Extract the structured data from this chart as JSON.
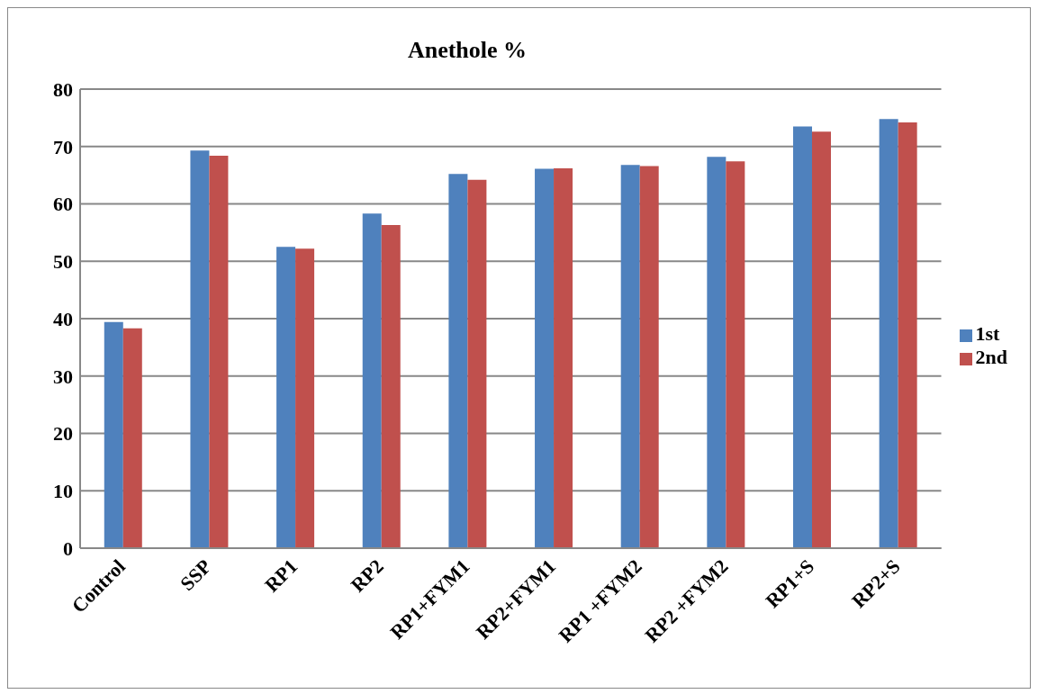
{
  "chart_data": {
    "type": "bar",
    "title": "Anethole %",
    "categories": [
      "Control",
      "SSP",
      "RP1",
      "RP2",
      "RP1+FYM1",
      "RP2+FYM1",
      "RP1 +FYM2",
      "RP2 +FYM2",
      "RP1+S",
      "RP2+S"
    ],
    "series": [
      {
        "name": "1st",
        "color": "#4f81bd",
        "values": [
          39.4,
          69.3,
          52.5,
          58.3,
          65.2,
          66.1,
          66.8,
          68.2,
          73.5,
          74.8
        ]
      },
      {
        "name": "2nd",
        "color": "#c0504d",
        "values": [
          38.3,
          68.4,
          52.2,
          56.3,
          64.2,
          66.2,
          66.6,
          67.4,
          72.6,
          74.2
        ]
      }
    ],
    "ylim": [
      0,
      80
    ],
    "yticks": [
      0,
      10,
      20,
      30,
      40,
      50,
      60,
      70,
      80
    ],
    "grid": "y",
    "legend": "right"
  }
}
